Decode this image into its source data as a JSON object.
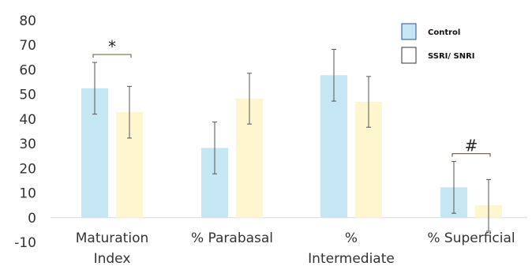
{
  "chart_data": {
    "type": "bar",
    "title": "",
    "xlabel": "",
    "ylabel": "",
    "ylim": [
      -10,
      80
    ],
    "yticks": [
      -10,
      0,
      10,
      20,
      30,
      40,
      50,
      60,
      70,
      80
    ],
    "grid": false,
    "legend_position": "top-right",
    "categories": [
      [
        "Maturation",
        "Index"
      ],
      [
        "% Parabasal"
      ],
      [
        "%",
        "Intermediate"
      ],
      [
        "% Superficial"
      ]
    ],
    "series": [
      {
        "name": "Control",
        "color": "#c5e6f3",
        "legend_border": "#2f4f8f",
        "values": [
          52.5,
          28.3,
          57.8,
          12.3
        ],
        "errors": [
          10.5,
          10.5,
          10.5,
          10.5
        ]
      },
      {
        "name": "SSRI/ SNRI",
        "color": "#fdf6cf",
        "legend_border": "#333333",
        "values": [
          42.8,
          48.3,
          47.0,
          5.0
        ],
        "errors": [
          10.5,
          10.3,
          10.3,
          10.5
        ]
      }
    ],
    "annotations": [
      {
        "text": "*",
        "category_index": 0
      },
      {
        "text": "#",
        "category_index": 3
      }
    ]
  }
}
